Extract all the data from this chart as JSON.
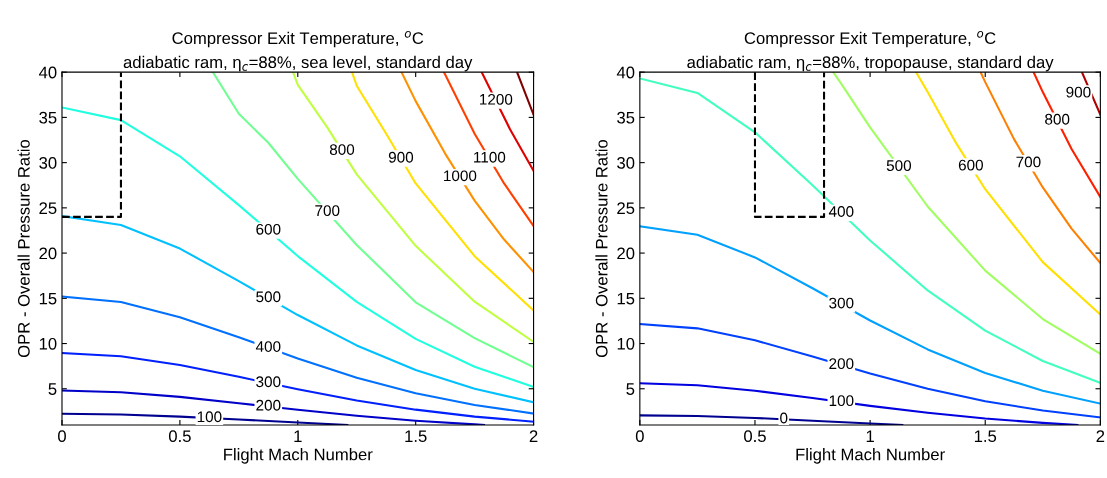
{
  "chart_data": [
    {
      "type": "line",
      "title": "Compressor Exit Temperature, $^{o}$C",
      "subtitle": "adiabatic ram, η$_{c}$=88%, sea level, standard day",
      "xlabel": "Flight Mach Number",
      "ylabel": "OPR - Overall Pressure Ratio",
      "xlim": [
        0,
        2
      ],
      "ylim": [
        1,
        40
      ],
      "xticks": [
        0,
        0.5,
        1,
        1.5,
        2
      ],
      "yticks": [
        5,
        10,
        15,
        20,
        25,
        30,
        35,
        40
      ],
      "line_style": "solid",
      "series": [
        {
          "name": "100",
          "color": "#000090",
          "x": [
            0,
            0.25,
            0.5,
            0.75,
            1,
            1.21
          ],
          "values": [
            2.24,
            2.16,
            1.92,
            1.6,
            1.27,
            1.0
          ]
        },
        {
          "name": "200",
          "color": "#0000c8",
          "x": [
            0,
            0.25,
            0.5,
            0.75,
            1,
            1.25,
            1.5,
            1.75,
            1.79
          ],
          "values": [
            4.8,
            4.61,
            4.1,
            3.4,
            2.67,
            2.01,
            1.47,
            1.06,
            1.0
          ]
        },
        {
          "name": "300",
          "color": "#0020ff",
          "x": [
            0,
            0.25,
            0.5,
            0.75,
            1,
            1.25,
            1.5,
            1.75,
            2
          ],
          "values": [
            8.95,
            8.59,
            7.63,
            6.32,
            4.94,
            3.7,
            2.69,
            1.92,
            1.36
          ]
        },
        {
          "name": "400",
          "color": "#0070ff",
          "x": [
            0,
            0.25,
            0.5,
            0.75,
            1,
            1.25,
            1.5,
            1.75,
            2
          ],
          "values": [
            15.2,
            14.6,
            12.9,
            10.7,
            8.34,
            6.23,
            4.51,
            3.21,
            2.26
          ]
        },
        {
          "name": "500",
          "color": "#00c0ff",
          "x": [
            0,
            0.25,
            0.5,
            0.75,
            1,
            1.25,
            1.5,
            1.75,
            2
          ],
          "values": [
            24.1,
            23.1,
            20.5,
            16.9,
            13.15,
            9.79,
            7.07,
            5.0,
            3.51
          ]
        },
        {
          "name": "600",
          "color": "#20ffdf",
          "x": [
            0,
            0.25,
            0.5,
            0.75,
            1,
            1.25,
            1.5,
            1.75,
            2
          ],
          "values": [
            36.1,
            34.7,
            30.7,
            25.3,
            19.67,
            14.6,
            10.52,
            7.43,
            5.2
          ]
        },
        {
          "name": "700",
          "color": "#70ff90",
          "x": [
            0.64,
            0.75,
            0.875,
            1,
            1.25,
            1.5,
            1.75,
            2
          ],
          "values": [
            40,
            35.4,
            32.2,
            28.2,
            20.9,
            14.56,
            10.6,
            7.39
          ]
        },
        {
          "name": "800",
          "color": "#c0ff40",
          "x": [
            0.98,
            1,
            1.125,
            1.25,
            1.5,
            1.75,
            2
          ],
          "values": [
            40,
            38.6,
            33.9,
            28.7,
            20.8,
            14.63,
            10.18
          ]
        },
        {
          "name": "900",
          "color": "#ffe000",
          "x": [
            1.23,
            1.25,
            1.375,
            1.5,
            1.75,
            2
          ],
          "values": [
            40,
            38.5,
            33.2,
            27.7,
            19.66,
            13.65
          ]
        },
        {
          "name": "1000",
          "color": "#ff9000",
          "x": [
            1.44,
            1.5,
            1.625,
            1.75,
            1.875,
            2
          ],
          "values": [
            40,
            36.8,
            31.0,
            25.8,
            21.5,
            17.9
          ]
        },
        {
          "name": "1100",
          "color": "#ff4000",
          "x": [
            1.62,
            1.75,
            1.875,
            2
          ],
          "values": [
            40,
            33.2,
            27.7,
            23.0
          ]
        },
        {
          "name": "1200",
          "color": "#e00000",
          "x": [
            1.78,
            1.9,
            2
          ],
          "values": [
            40,
            33.7,
            29.1
          ]
        },
        {
          "color": "#800000",
          "x": [
            1.93,
            2
          ],
          "values": [
            40,
            35.3
          ]
        },
        {
          "color": "#000000",
          "line_style": "dashed",
          "x": [
            0,
            0.25,
            0.25
          ],
          "values": [
            24,
            24,
            40
          ]
        }
      ]
    },
    {
      "type": "line",
      "title": "Compressor Exit Temperature, $^{o}$C",
      "subtitle": "adiabatic ram, η$_{c}$=88%, tropopause, standard day",
      "xlabel": "Flight Mach Number",
      "ylabel": "OPR - Overall Pressure Ratio",
      "xlim": [
        0,
        2
      ],
      "ylim": [
        1,
        40
      ],
      "xticks": [
        0,
        0.5,
        1,
        1.5,
        2
      ],
      "yticks": [
        5,
        10,
        15,
        20,
        25,
        30,
        35,
        40
      ],
      "line_style": "solid",
      "series": [
        {
          "name": "0",
          "color": "#000090",
          "x": [
            0,
            0.25,
            0.5,
            0.75,
            1,
            1.14
          ],
          "values": [
            2.06,
            1.98,
            1.77,
            1.47,
            1.16,
            1.0
          ]
        },
        {
          "name": "100",
          "color": "#0000e0",
          "x": [
            0,
            0.25,
            0.5,
            0.75,
            1,
            1.25,
            1.5,
            1.75,
            1.9
          ],
          "values": [
            5.6,
            5.38,
            4.78,
            3.97,
            3.11,
            2.34,
            1.71,
            1.23,
            1.0
          ]
        },
        {
          "name": "200",
          "color": "#0040ff",
          "x": [
            0,
            0.25,
            0.5,
            0.75,
            1,
            1.25,
            1.5,
            1.75,
            2
          ],
          "values": [
            12.16,
            11.68,
            10.36,
            8.57,
            6.69,
            5.0,
            3.63,
            2.59,
            1.83
          ]
        },
        {
          "name": "300",
          "color": "#00a0ff",
          "x": [
            0,
            0.25,
            0.5,
            0.75,
            1,
            1.25,
            1.5,
            1.75,
            2
          ],
          "values": [
            22.96,
            22.03,
            19.52,
            16.11,
            12.55,
            9.35,
            6.75,
            4.78,
            3.36
          ]
        },
        {
          "name": "400",
          "color": "#40ffc0",
          "x": [
            0,
            0.25,
            0.5,
            0.75,
            1,
            1.25,
            1.5,
            1.75,
            2
          ],
          "values": [
            39.3,
            37.7,
            33.35,
            27.5,
            21.4,
            15.87,
            11.43,
            8.07,
            5.64
          ]
        },
        {
          "name": "500",
          "color": "#a0ff60",
          "x": [
            0.84,
            0.875,
            1,
            1.25,
            1.5,
            1.75,
            2
          ],
          "values": [
            40,
            38.7,
            33.9,
            25.15,
            18.06,
            12.71,
            8.85
          ]
        },
        {
          "name": "600",
          "color": "#ffe000",
          "x": [
            1.2,
            1.25,
            1.375,
            1.5,
            1.75,
            2
          ],
          "values": [
            40,
            37.8,
            32.1,
            27.06,
            19.0,
            13.2
          ]
        },
        {
          "name": "700",
          "color": "#ff8000",
          "x": [
            1.48,
            1.5,
            1.625,
            1.75,
            1.875,
            2
          ],
          "values": [
            40,
            38.9,
            32.6,
            27.26,
            22.7,
            18.9
          ]
        },
        {
          "name": "800",
          "color": "#ff2000",
          "x": [
            1.71,
            1.75,
            1.875,
            2
          ],
          "values": [
            40,
            37.8,
            31.5,
            26.2
          ]
        },
        {
          "name": "900",
          "color": "#b00000",
          "x": [
            1.92,
            2
          ],
          "values": [
            40,
            35.3
          ]
        },
        {
          "color": "#000000",
          "line_style": "dashed",
          "x": [
            0.5,
            0.5,
            0.8,
            0.8
          ],
          "values": [
            40,
            24,
            24,
            40
          ]
        }
      ]
    }
  ]
}
